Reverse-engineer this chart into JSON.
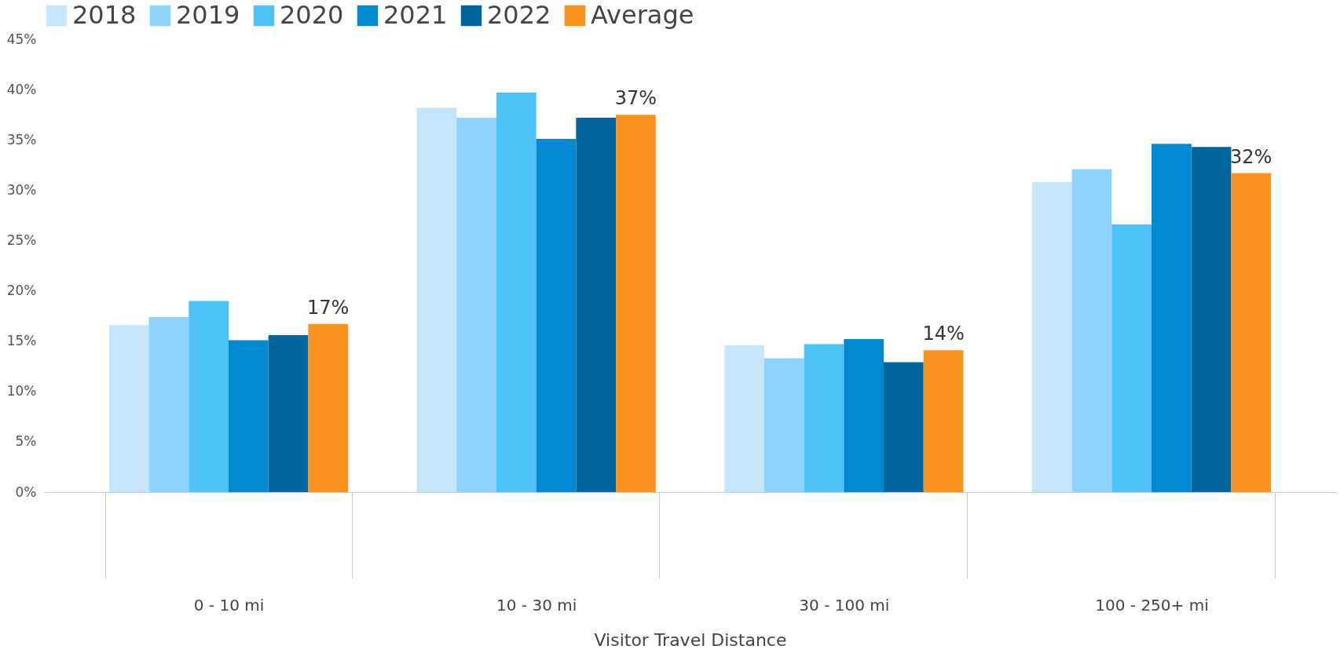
{
  "chart_data": {
    "type": "bar",
    "xlabel": "Visitor Travel Distance",
    "categories": [
      "0 - 10 mi",
      "10 - 30 mi",
      "30 - 100 mi",
      "100 - 250+ mi"
    ],
    "series": [
      {
        "name": "2018",
        "color": "#c5e6fa",
        "values": [
          16.6,
          38.2,
          14.6,
          30.8
        ]
      },
      {
        "name": "2019",
        "color": "#8dd3fb",
        "values": [
          17.4,
          37.2,
          13.3,
          32.1
        ]
      },
      {
        "name": "2020",
        "color": "#4fc3f7",
        "values": [
          19.0,
          39.7,
          14.7,
          26.6
        ]
      },
      {
        "name": "2021",
        "color": "#0288d1",
        "values": [
          15.1,
          35.1,
          15.2,
          34.6
        ]
      },
      {
        "name": "2022",
        "color": "#01669e",
        "values": [
          15.6,
          37.2,
          12.9,
          34.3
        ]
      },
      {
        "name": "Average",
        "color": "#f7931e",
        "values": [
          16.7,
          37.5,
          14.1,
          31.7
        ],
        "value_labels": [
          "17%",
          "37%",
          "14%",
          "32%"
        ]
      }
    ],
    "ylim": [
      0,
      45
    ],
    "yticks": [
      {
        "value": 0,
        "label": "0%"
      },
      {
        "value": 5,
        "label": "5%"
      },
      {
        "value": 10,
        "label": "10%"
      },
      {
        "value": 15,
        "label": "15%"
      },
      {
        "value": 20,
        "label": "20%"
      },
      {
        "value": 25,
        "label": "25%"
      },
      {
        "value": 30,
        "label": "30%"
      },
      {
        "value": 35,
        "label": "35%"
      },
      {
        "value": 40,
        "label": "40%"
      },
      {
        "value": 45,
        "label": "45%"
      }
    ],
    "grid": false,
    "legend": "top left"
  }
}
